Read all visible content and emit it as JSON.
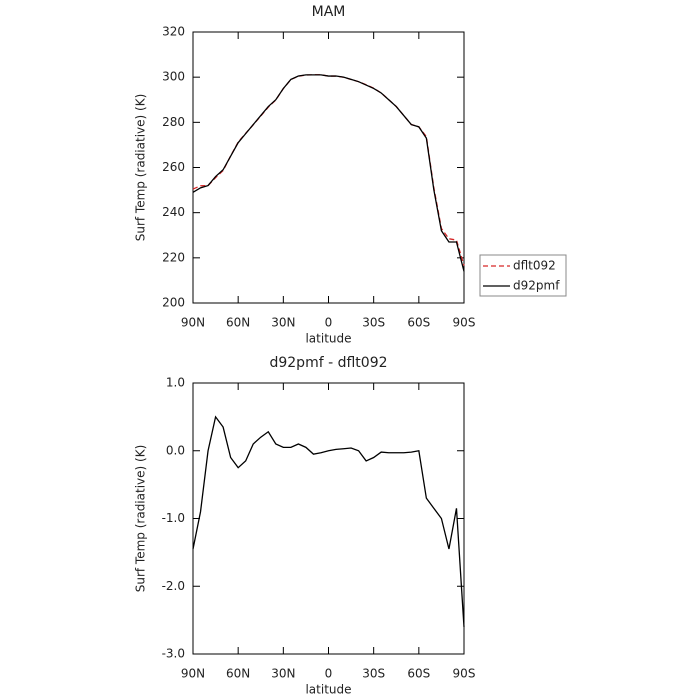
{
  "chart_data": [
    {
      "type": "line",
      "title": "MAM",
      "xlabel": "latitude",
      "ylabel": "Surf Temp (radiative) (K)",
      "x": [
        90,
        85,
        80,
        75,
        70,
        65,
        60,
        55,
        50,
        45,
        40,
        35,
        30,
        25,
        20,
        15,
        10,
        5,
        0,
        -5,
        -10,
        -15,
        -20,
        -25,
        -30,
        -35,
        -40,
        -45,
        -50,
        -55,
        -60,
        -65,
        -70,
        -75,
        -80,
        -85,
        -90
      ],
      "xlim": [
        90,
        -90
      ],
      "xticks": [
        {
          "value": 90,
          "label": "90N"
        },
        {
          "value": 60,
          "label": "60N"
        },
        {
          "value": 30,
          "label": "30N"
        },
        0,
        {
          "value": -30,
          "label": "30S"
        },
        {
          "value": -60,
          "label": "60S"
        },
        {
          "value": -90,
          "label": "90S"
        }
      ],
      "ylim": [
        200,
        320
      ],
      "yticks": [
        200,
        220,
        240,
        260,
        280,
        300,
        320
      ],
      "legend": "outside-right",
      "series": [
        {
          "name": "dflt092",
          "color": "#d62728",
          "dash": true,
          "values": [
            250.45,
            251.9,
            252,
            255.5,
            258.65,
            265.1,
            271.25,
            275.15,
            278.9,
            282.8,
            286.72,
            289.9,
            294.95,
            298.95,
            300.4,
            300.95,
            301.05,
            301.03,
            300.5,
            300.48,
            299.97,
            298.96,
            298,
            296.65,
            295.1,
            293.02,
            290.03,
            287.03,
            283.03,
            279.02,
            278,
            273.7,
            250.85,
            233,
            228.45,
            227.85,
            216.6
          ]
        },
        {
          "name": "d92pmf",
          "color": "#000000",
          "dash": false,
          "values": [
            249,
            251,
            252,
            256,
            259,
            265,
            271,
            275,
            279,
            283,
            287,
            290,
            295,
            299,
            300.5,
            301,
            301,
            301,
            300.5,
            300.5,
            300,
            299,
            298,
            296.5,
            295,
            293,
            290,
            287,
            283,
            279,
            278,
            273,
            250,
            232,
            227,
            227,
            214
          ]
        }
      ]
    },
    {
      "type": "line",
      "title": "d92pmf - dflt092",
      "xlabel": "latitude",
      "ylabel": "Surf Temp (radiative) (K)",
      "x": [
        90,
        85,
        80,
        75,
        70,
        65,
        60,
        55,
        50,
        45,
        40,
        35,
        30,
        25,
        20,
        15,
        10,
        5,
        0,
        -5,
        -10,
        -15,
        -20,
        -25,
        -30,
        -35,
        -40,
        -45,
        -50,
        -55,
        -60,
        -65,
        -70,
        -75,
        -80,
        -85,
        -90
      ],
      "xlim": [
        90,
        -90
      ],
      "xticks": [
        {
          "value": 90,
          "label": "90N"
        },
        {
          "value": 60,
          "label": "60N"
        },
        {
          "value": 30,
          "label": "30N"
        },
        0,
        {
          "value": -30,
          "label": "30S"
        },
        {
          "value": -60,
          "label": "60S"
        },
        {
          "value": -90,
          "label": "90S"
        }
      ],
      "ylim": [
        -3,
        1
      ],
      "yticks": [
        {
          "value": -3,
          "label": "-3.0"
        },
        {
          "value": -2,
          "label": "-2.0"
        },
        {
          "value": -1,
          "label": "-1.0"
        },
        {
          "value": 0,
          "label": "0.0"
        },
        {
          "value": 1,
          "label": "1.0"
        }
      ],
      "series": [
        {
          "color": "#000000",
          "dash": false,
          "values": [
            -1.45,
            -0.9,
            0.0,
            0.5,
            0.35,
            -0.1,
            -0.25,
            -0.15,
            0.1,
            0.2,
            0.28,
            0.1,
            0.05,
            0.05,
            0.1,
            0.05,
            -0.05,
            -0.03,
            0.0,
            0.02,
            0.03,
            0.04,
            0.0,
            -0.15,
            -0.1,
            -0.02,
            -0.03,
            -0.03,
            -0.03,
            -0.02,
            0.0,
            -0.7,
            -0.85,
            -1.0,
            -1.45,
            -0.85,
            -2.6
          ]
        }
      ]
    }
  ]
}
